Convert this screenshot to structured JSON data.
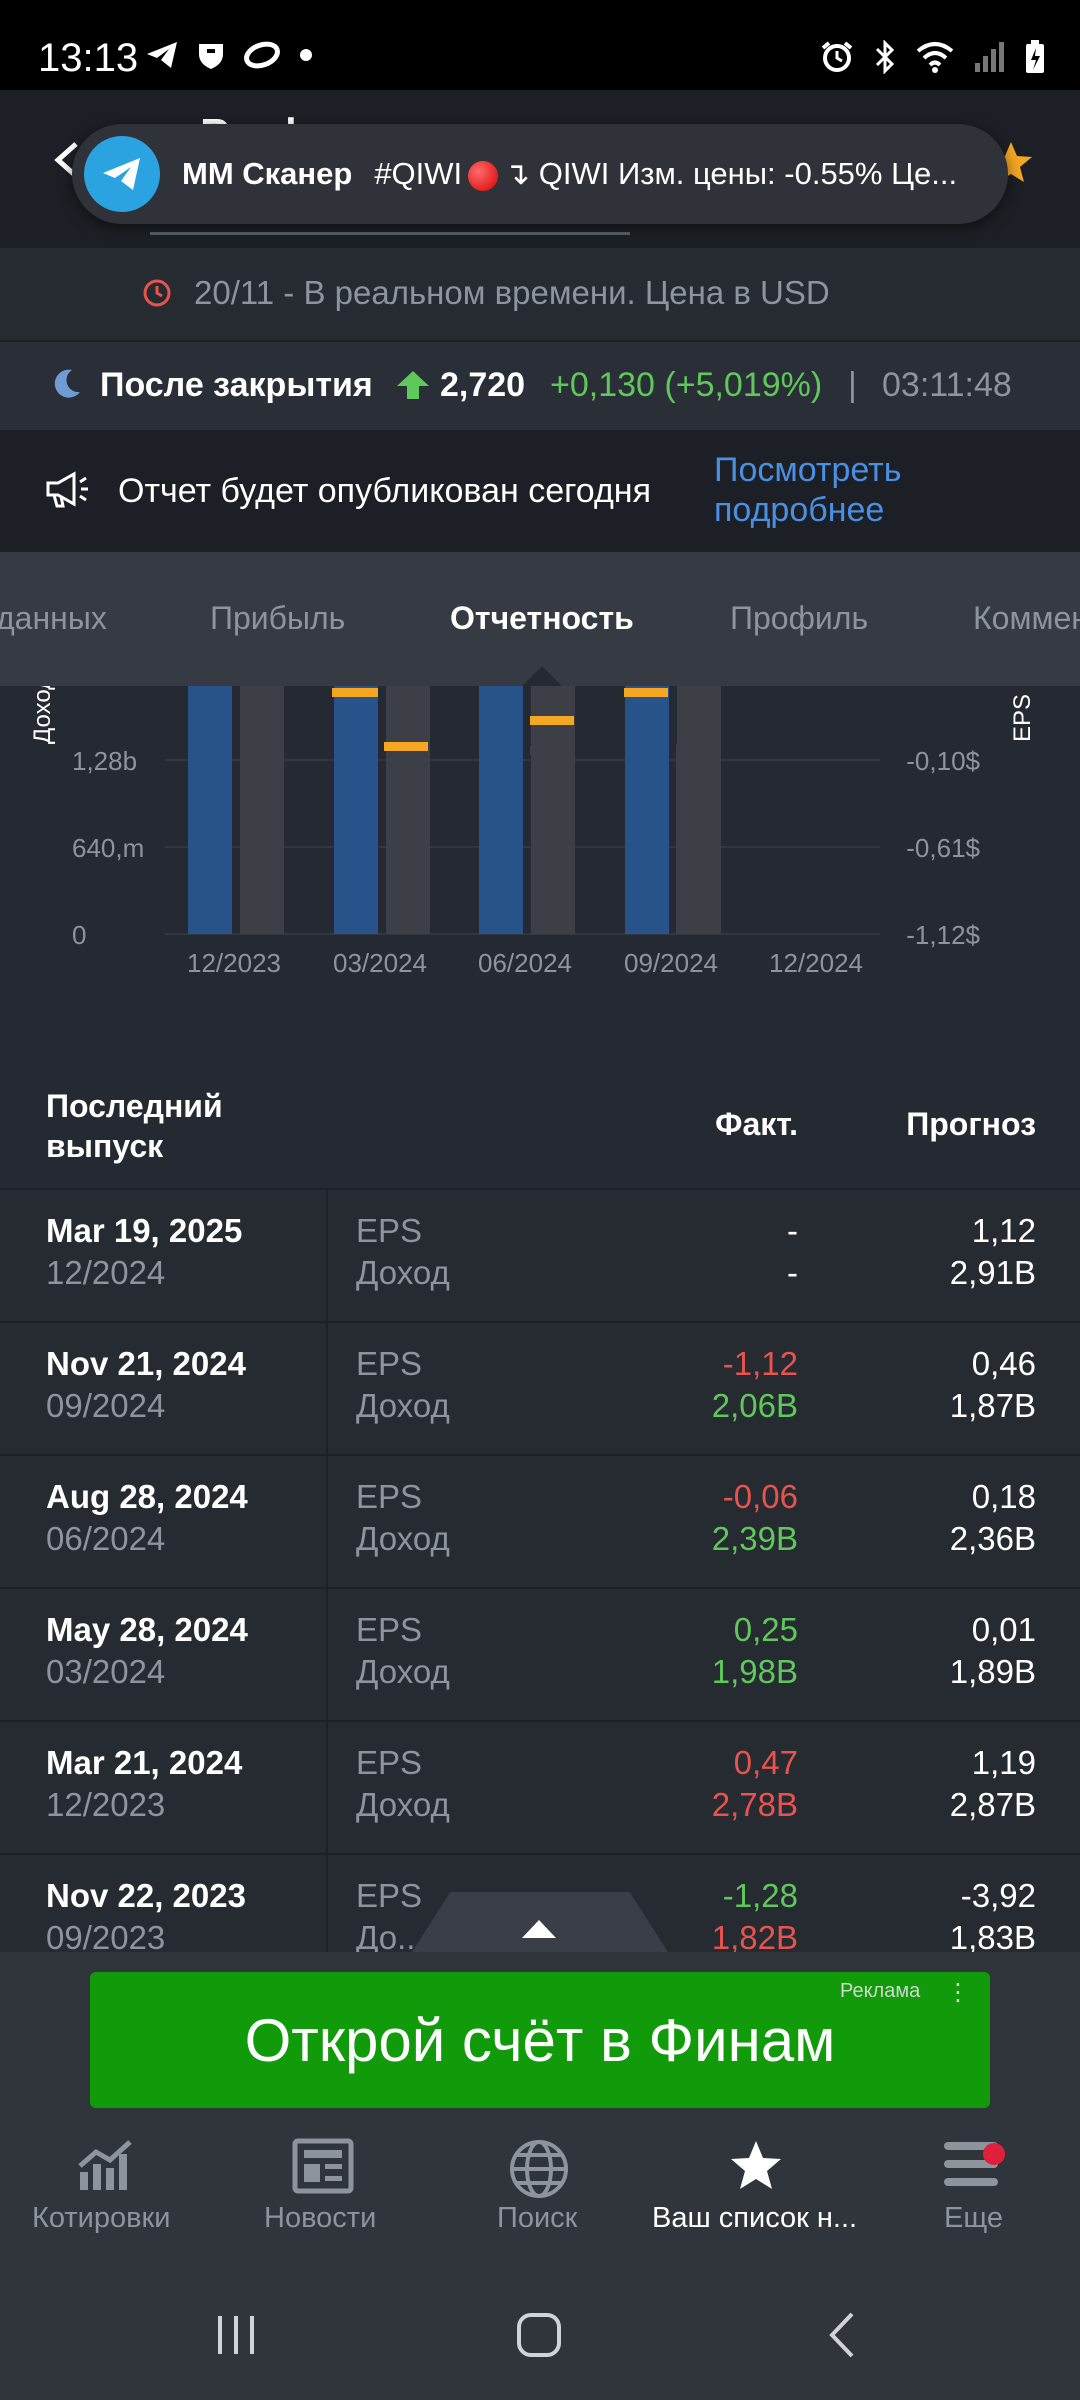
{
  "status_bar": {
    "time": "13:13"
  },
  "header": {
    "title_partial": "Р... ф"
  },
  "notification": {
    "app": "MM Сканер",
    "text": "#QIWI",
    "text_after": "↴  QIWI Изм. цены: -0.55% Це..."
  },
  "realtime": {
    "text": "20/11 - В реальном времени. Цена в USD"
  },
  "after_hours": {
    "label": "После закрытия",
    "price": "2,720",
    "change": "+0,130 (+5,019%)",
    "separator": "|",
    "time": "03:11:48"
  },
  "report_banner": {
    "text": "Отчет будет опубликован сегодня",
    "link_line1": "Посмотреть",
    "link_line2": "подробнее"
  },
  "tabs": [
    {
      "label": "данных"
    },
    {
      "label": "Прибыль"
    },
    {
      "label": "Отчетность"
    },
    {
      "label": "Профиль"
    },
    {
      "label": "Коммен"
    }
  ],
  "chart_data": {
    "type": "bar",
    "ylabel_left": "Доход",
    "ylabel_right": "EPS",
    "left_ticks": [
      "1,28b",
      "640,m",
      "0"
    ],
    "right_ticks": [
      "-0,10$",
      "-0,61$",
      "-1,12$"
    ],
    "categories": [
      "12/2023",
      "03/2024",
      "06/2024",
      "09/2024",
      "12/2024"
    ],
    "series": [
      {
        "values": [
          2.78,
          1.98,
          2.39,
          2.06,
          null
        ]
      },
      {
        "values": [
          2.87,
          1.89,
          2.36,
          1.87,
          2.91
        ]
      }
    ],
    "eps": [
      {
        "values": [
          0.47,
          0.25,
          -0.06,
          -1.12,
          null
        ]
      },
      {
        "values": [
          1.19,
          0.01,
          0.18,
          0.46,
          1.12
        ]
      }
    ],
    "colors": {
      "actual": "#27528a",
      "forecast": "#3c4046",
      "eps_marker": "#f5a623"
    }
  },
  "table": {
    "header": {
      "release_line1": "Последний",
      "release_line2": "выпуск",
      "fact": "Факт.",
      "forecast": "Прогноз"
    },
    "rows": [
      {
        "date": "Mar 19, 2025",
        "period": "12/2024",
        "m1": "EPS",
        "m2": "Доход",
        "f1": "-",
        "f2": "-",
        "f1c": "white",
        "f2c": "white",
        "p1": "1,12",
        "p2": "2,91B"
      },
      {
        "date": "Nov 21, 2024",
        "period": "09/2024",
        "m1": "EPS",
        "m2": "Доход",
        "f1": "-1,12",
        "f2": "2,06B",
        "f1c": "red",
        "f2c": "green",
        "p1": "0,46",
        "p2": "1,87B"
      },
      {
        "date": "Aug 28, 2024",
        "period": "06/2024",
        "m1": "EPS",
        "m2": "Доход",
        "f1": "-0,06",
        "f2": "2,39B",
        "f1c": "red",
        "f2c": "green",
        "p1": "0,18",
        "p2": "2,36B"
      },
      {
        "date": "May 28, 2024",
        "period": "03/2024",
        "m1": "EPS",
        "m2": "Доход",
        "f1": "0,25",
        "f2": "1,98B",
        "f1c": "green",
        "f2c": "green",
        "p1": "0,01",
        "p2": "1,89B"
      },
      {
        "date": "Mar 21, 2024",
        "period": "12/2023",
        "m1": "EPS",
        "m2": "Доход",
        "f1": "0,47",
        "f2": "2,78B",
        "f1c": "red",
        "f2c": "red",
        "p1": "1,19",
        "p2": "2,87B"
      },
      {
        "date": "Nov 22, 2023",
        "period": "09/2023",
        "m1": "EPS",
        "m2": "До...",
        "f1": "-1,28",
        "f2": "1,82B",
        "f1c": "green",
        "f2c": "red",
        "p1": "-3,92",
        "p2": "1,83B"
      }
    ]
  },
  "ad": {
    "text": "Открой счёт в Финам",
    "label": "Реклама"
  },
  "bottom_nav": [
    {
      "label": "Котировки",
      "icon": "chart-icon"
    },
    {
      "label": "Новости",
      "icon": "news-icon"
    },
    {
      "label": "Поиск",
      "icon": "globe-icon"
    },
    {
      "label": "Ваш список н...",
      "icon": "star-icon"
    },
    {
      "label": "Еще",
      "icon": "menu-icon"
    }
  ]
}
